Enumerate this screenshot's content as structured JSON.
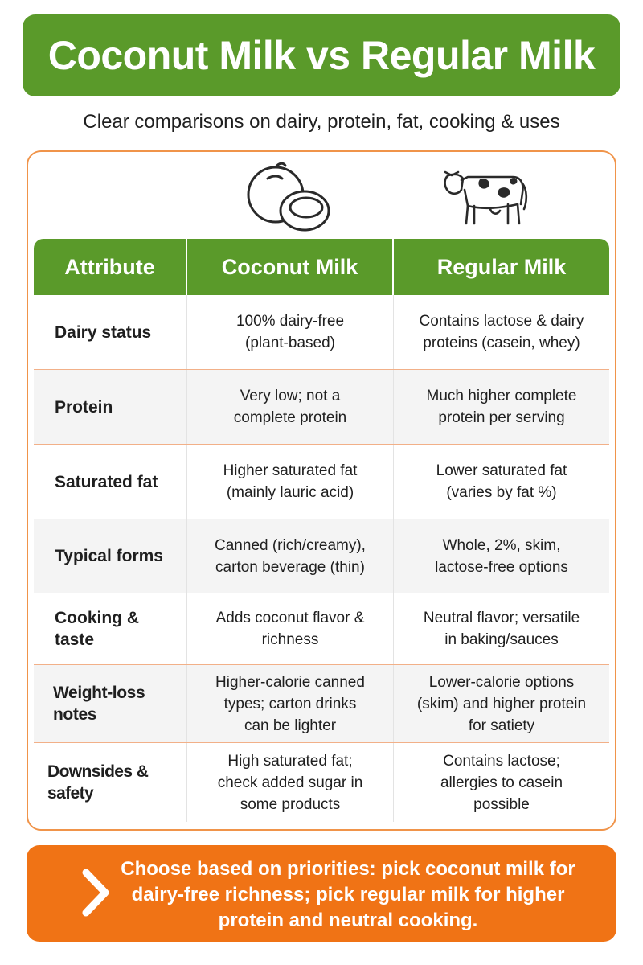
{
  "title": "Coconut Milk vs Regular Milk",
  "subtitle": "Clear comparisons on dairy, protein, fat, cooking & uses",
  "icons": {
    "left": "coconut-icon",
    "right": "cow-icon"
  },
  "colors": {
    "green": "#5a9a2a",
    "orange": "#f07315",
    "border": "#f0944a"
  },
  "table": {
    "headers": [
      "Attribute",
      "Coconut Milk",
      "Regular Milk"
    ],
    "rows": [
      {
        "attribute": "Dairy status",
        "coconut": [
          "100% dairy-free",
          "(plant-based)"
        ],
        "regular": [
          "Contains lactose & dairy",
          "proteins (casein, whey)"
        ]
      },
      {
        "attribute": "Protein",
        "coconut": [
          "Very low; not a",
          "complete protein"
        ],
        "regular": [
          "Much higher complete",
          "protein per serving"
        ]
      },
      {
        "attribute": "Saturated fat",
        "coconut": [
          "Higher saturated fat",
          "(mainly lauric acid)"
        ],
        "regular": [
          "Lower saturated fat",
          "(varies by fat %)"
        ]
      },
      {
        "attribute": "Typical forms",
        "coconut": [
          "Canned (rich/creamy),",
          "carton beverage (thin)"
        ],
        "regular": [
          "Whole, 2%, skim,",
          "lactose-free options"
        ]
      },
      {
        "attribute": "Cooking & taste",
        "coconut": [
          "Adds coconut flavor &",
          "richness"
        ],
        "regular": [
          "Neutral flavor; versatile",
          "in baking/sauces"
        ]
      },
      {
        "attribute": "Weight-loss notes",
        "coconut": [
          "Higher-calorie canned",
          "types; carton drinks",
          "can be lighter"
        ],
        "regular": [
          "Lower-calorie options",
          "(skim) and higher protein",
          "for satiety"
        ]
      },
      {
        "attribute": "Downsides & safety",
        "coconut": [
          "High saturated fat;",
          "check added sugar in",
          "some products"
        ],
        "regular": [
          "Contains lactose;",
          "allergies to casein",
          "possible"
        ]
      }
    ]
  },
  "footer": {
    "icon": "chevron-right-icon",
    "lines": [
      "Choose based on priorities: pick coconut milk for",
      "dairy-free richness; pick regular milk for higher",
      "protein and neutral cooking."
    ]
  }
}
